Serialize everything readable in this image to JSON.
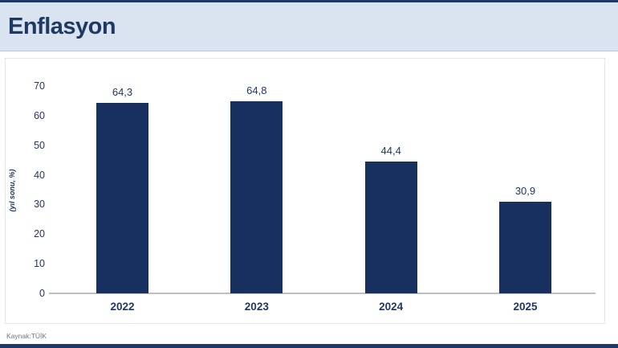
{
  "header": {
    "title": "Enflasyon"
  },
  "chart_data": {
    "type": "bar",
    "title": "Enflasyon",
    "categories": [
      "2022",
      "2023",
      "2024",
      "2025"
    ],
    "values": [
      64.3,
      64.8,
      44.4,
      30.9
    ],
    "value_labels": [
      "64,3",
      "64,8",
      "44,4",
      "30,9"
    ],
    "xlabel": "",
    "ylabel": "(yıl sonu, %)",
    "ylim": [
      0,
      70
    ],
    "yticks": [
      0,
      10,
      20,
      30,
      40,
      50,
      60,
      70
    ],
    "grid": false,
    "legend": "none",
    "bar_color": "#17305F"
  },
  "footer": {
    "source": "Kaynak:TÜİK"
  },
  "colors": {
    "accent_navy": "#1F3864",
    "header_bg": "#DAE3F0",
    "bar_fill": "#17305F",
    "axis_line": "#BFBFBF"
  }
}
